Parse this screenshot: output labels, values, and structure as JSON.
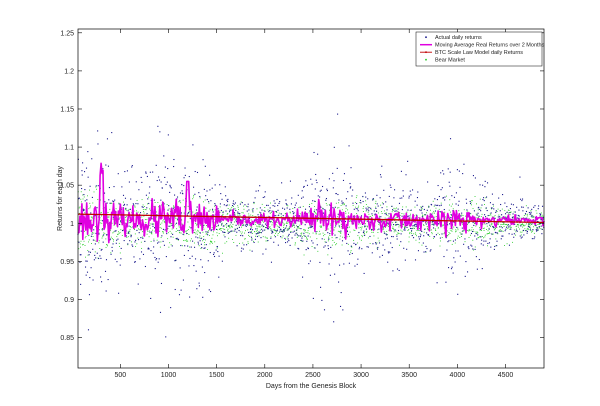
{
  "chart_data": {
    "type": "scatter",
    "xlabel": "Days from the Genesis Block",
    "ylabel": "Returns for each day",
    "xlim": [
      60,
      4900
    ],
    "ylim": [
      0.81,
      1.255
    ],
    "xticks": [
      500,
      1000,
      1500,
      2000,
      2500,
      3000,
      3500,
      4000,
      4500
    ],
    "yticks": [
      0.85,
      0.9,
      0.95,
      1,
      1.05,
      1.1,
      1.15,
      1.2,
      1.25
    ],
    "grid": false,
    "legend_position": "top-right",
    "colors": {
      "actual": "#1a1a8c",
      "moving_average": "#e000e0",
      "scale_law": "#c00000",
      "bear_market": "#22cc22",
      "axis": "#000000",
      "legend_border": "#000000"
    },
    "series": [
      {
        "name": "Actual daily returns",
        "marker": "dot",
        "color": "#1a1a8c",
        "seed": 11
      },
      {
        "name": "Moving Average Real Returns over 2 Months",
        "marker": "line",
        "color": "#e000e0",
        "seed": 23
      },
      {
        "name": "BTC Scale Law Model daily Returns",
        "marker": "dot-line",
        "color": "#c00000",
        "x": [
          60,
          4900
        ],
        "y": [
          1.012,
          1.001
        ]
      },
      {
        "name": "Bear Market",
        "marker": "dot",
        "color": "#22cc22",
        "seed": 37
      }
    ],
    "volatility_profile": {
      "actual_scale_by_day": [
        [
          60,
          0.07
        ],
        [
          600,
          0.035
        ],
        [
          950,
          0.06
        ],
        [
          1300,
          0.06
        ],
        [
          1600,
          0.02
        ],
        [
          2300,
          0.02
        ],
        [
          2500,
          0.055
        ],
        [
          2800,
          0.06
        ],
        [
          3100,
          0.02
        ],
        [
          3300,
          0.035
        ],
        [
          3700,
          0.02
        ],
        [
          3850,
          0.04
        ],
        [
          4200,
          0.035
        ],
        [
          4500,
          0.015
        ],
        [
          4900,
          0.012
        ]
      ],
      "bear_scale_by_day": [
        [
          60,
          0.04
        ],
        [
          700,
          0.025
        ],
        [
          1200,
          0.03
        ],
        [
          2000,
          0.02
        ],
        [
          2700,
          0.03
        ],
        [
          3500,
          0.02
        ],
        [
          4200,
          0.025
        ],
        [
          4900,
          0.01
        ]
      ]
    }
  }
}
